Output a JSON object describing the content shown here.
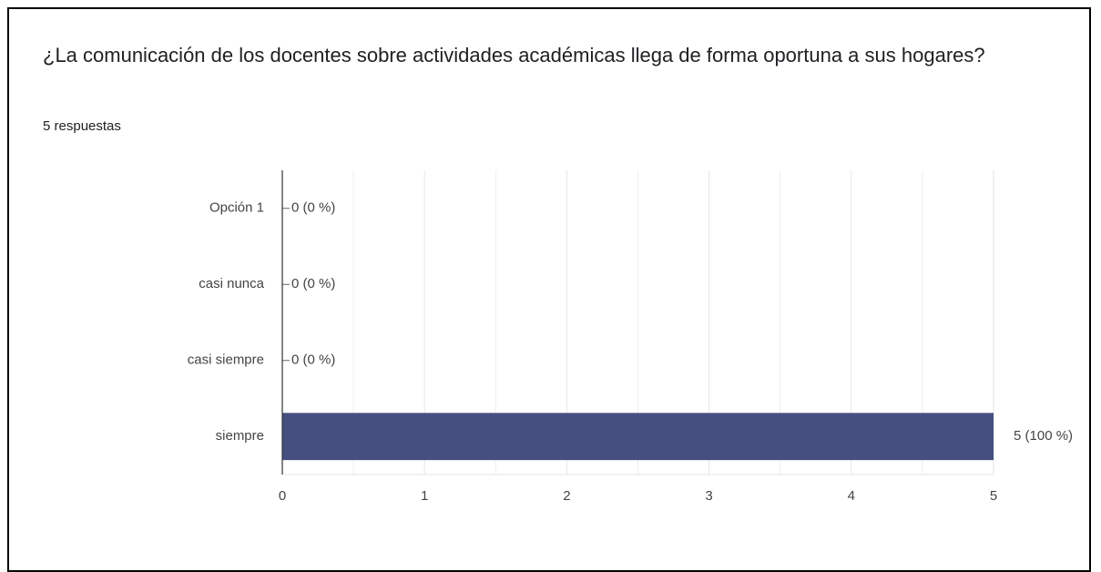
{
  "chart_data": {
    "type": "hbar",
    "title": "¿La comunicación de los docentes sobre actividades académicas llega de forma oportuna a sus hogares?",
    "subtitle": "5 respuestas",
    "categories": [
      "Opción 1",
      "casi nunca",
      "casi siempre",
      "siempre"
    ],
    "values": [
      0,
      0,
      0,
      5
    ],
    "value_labels": [
      "0 (0 %)",
      "0 (0 %)",
      "0 (0 %)",
      "5 (100 %)"
    ],
    "color": "#454f80",
    "xlim": [
      0,
      5
    ],
    "xticks": [
      0,
      1,
      2,
      3,
      4,
      5
    ],
    "xminorticks": [
      0.5,
      1.5,
      2.5,
      3.5,
      4.5
    ],
    "grid": true
  }
}
